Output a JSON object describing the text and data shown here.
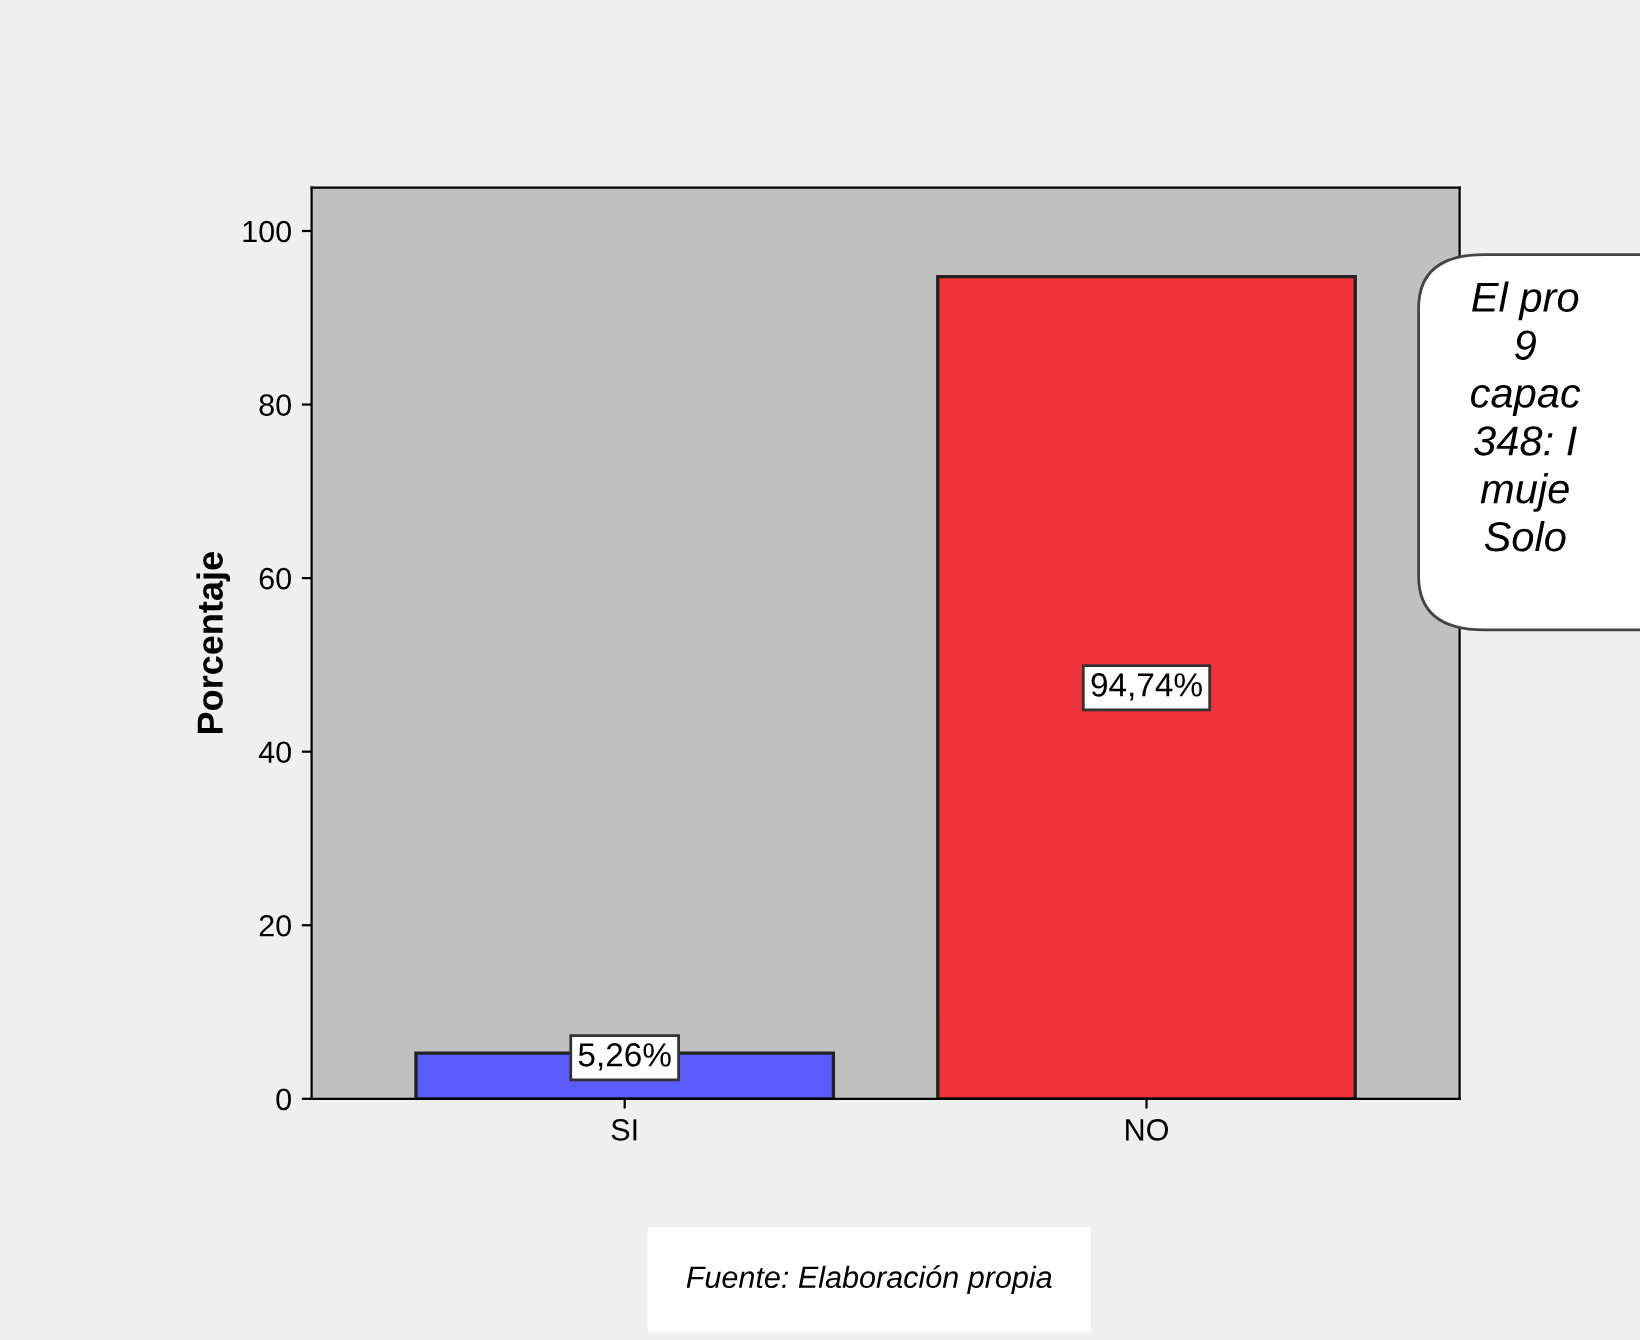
{
  "chart_data": {
    "type": "bar",
    "ylabel": "Porcentaje",
    "categories": [
      "SI",
      "NO"
    ],
    "values": [
      5.26,
      94.74
    ],
    "colors": [
      "#5b5bff",
      "#f0323a"
    ],
    "value_labels": [
      "5,26%",
      "94,74%"
    ],
    "ylim": [
      0,
      105
    ],
    "yticks": [
      0,
      20,
      40,
      60,
      80,
      100
    ],
    "grid": false,
    "legend": false,
    "annotations": [
      "El pro\n9\ncapac\n348: I\nmuje\nSolo",
      "Fuente: Elaboración propia"
    ]
  }
}
